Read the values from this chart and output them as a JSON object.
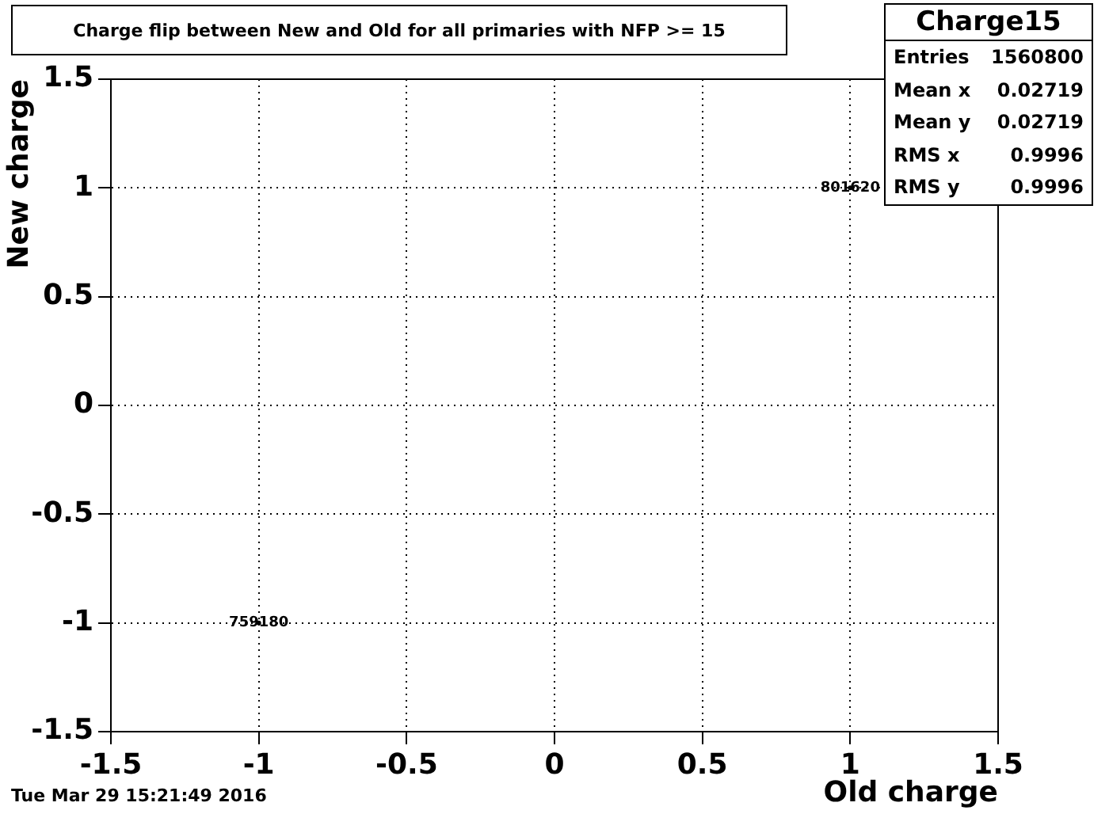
{
  "chart_data": {
    "type": "scatter",
    "title": "Charge flip between New and Old for all primaries with NFP >= 15",
    "xlabel": "Old charge",
    "ylabel": "New charge",
    "x": [
      -1,
      1
    ],
    "series": [
      {
        "color": "#000000",
        "values": [
          -1,
          1
        ]
      }
    ],
    "marker": "circle",
    "xlim": [
      -1.5,
      1.5
    ],
    "ylim": [
      -1.5,
      1.5
    ],
    "xticks": [
      -1.5,
      -1,
      -0.5,
      0,
      0.5,
      1,
      1.5
    ],
    "yticks": [
      -1.5,
      -1,
      -0.5,
      0,
      0.5,
      1,
      1.5
    ],
    "grid": true,
    "legend": false,
    "annotations": [
      {
        "text": "759180",
        "x": -1,
        "y": -1
      },
      {
        "text": "801620",
        "x": 1,
        "y": 1
      },
      "Charge15",
      "Entries 1560800",
      "Mean x 0.02719",
      "Mean y 0.02719",
      "RMS x 0.9996",
      "RMS y 0.9996",
      "Tue Mar 29 15:21:49 2016"
    ]
  }
}
